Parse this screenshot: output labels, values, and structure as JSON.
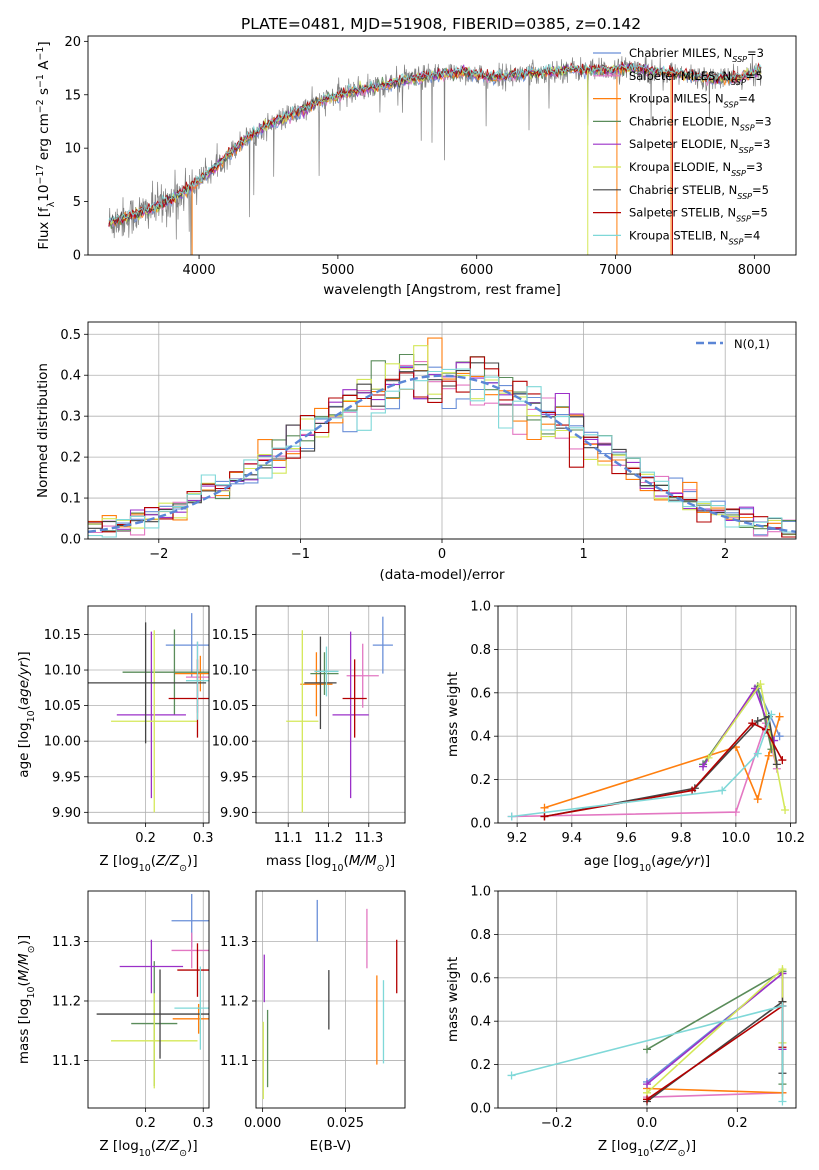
{
  "figure_title": "PLATE=0481, MJD=51908, FIBERID=0385, z=0.142",
  "models": [
    {
      "name": "Chabrier MILES, N_SSP=3",
      "color": "#6a8fd8"
    },
    {
      "name": "Salpeter MILES, N_SSP=5",
      "color": "#e377c2"
    },
    {
      "name": "Kroupa MILES, N_SSP=4",
      "color": "#ff7f0e"
    },
    {
      "name": "Chabrier ELODIE, N_SSP=3",
      "color": "#5a8c5a"
    },
    {
      "name": "Salpeter ELODIE, N_SSP=3",
      "color": "#9b30c8"
    },
    {
      "name": "Kroupa ELODIE, N_SSP=3",
      "color": "#d4e858"
    },
    {
      "name": "Chabrier STELIB, N_SSP=5",
      "color": "#444444"
    },
    {
      "name": "Salpeter STELIB, N_SSP=5",
      "color": "#b30000"
    },
    {
      "name": "Kroupa STELIB, N_SSP=4",
      "color": "#7fd8d8"
    }
  ],
  "chart_data": [
    {
      "id": "spectrum",
      "type": "line",
      "xlabel": "wavelength [Angstrom, rest frame]",
      "ylabel": "Flux [f_λ 10^-17 erg cm^-2 s^-1 A^-1]",
      "xlim": [
        3200,
        8300
      ],
      "ylim": [
        0,
        20.5
      ],
      "xticks": [
        4000,
        5000,
        6000,
        7000,
        8000
      ],
      "yticks": [
        0,
        5,
        10,
        15,
        20
      ],
      "legend_position": "right",
      "data_envelope": {
        "x": [
          3350,
          3500,
          3700,
          3900,
          4100,
          4300,
          4500,
          4700,
          4900,
          5100,
          5300,
          5500,
          5700,
          5900,
          6100,
          6300,
          6500,
          6700,
          6900,
          7100,
          7300,
          7500,
          7700,
          7900,
          8050
        ],
        "y": [
          3.0,
          3.6,
          4.5,
          6.0,
          8.0,
          10.5,
          12.2,
          13.3,
          14.5,
          15.3,
          15.8,
          16.4,
          16.8,
          17.1,
          16.6,
          16.9,
          17.1,
          17.4,
          17.2,
          17.5,
          17.2,
          16.8,
          16.5,
          16.6,
          17.3
        ]
      },
      "grid": false
    },
    {
      "id": "residuals",
      "type": "step",
      "xlabel": "(data-model)/error",
      "ylabel": "Normed distribution",
      "xlim": [
        -2.5,
        2.5
      ],
      "ylim": [
        0,
        0.53
      ],
      "xticks": [
        -2,
        -1,
        0,
        1,
        2
      ],
      "yticks": [
        0,
        0.1,
        0.2,
        0.3,
        0.4,
        0.5
      ],
      "legend": "N(0,1)",
      "legend_position": "top-right",
      "grid": true,
      "bin_width": 0.1,
      "gaussian": {
        "mu": 0,
        "sigma": 1
      }
    },
    {
      "id": "age_vs_Z",
      "type": "errorbar",
      "xlabel": "Z [log10(Z/Z_sun)]",
      "ylabel": "age [log10(age/yr)]",
      "xlim": [
        0.1,
        0.31
      ],
      "ylim": [
        9.885,
        10.19
      ],
      "xticks": [
        0.2,
        0.3
      ],
      "yticks": [
        9.9,
        9.95,
        10.0,
        10.05,
        10.1,
        10.15
      ],
      "grid": true,
      "points": [
        {
          "x": 0.28,
          "y": 10.135,
          "xe": 0.045,
          "ye": 0.045
        },
        {
          "x": 0.29,
          "y": 10.09,
          "xe": 0.02,
          "ye": 0.05
        },
        {
          "x": 0.295,
          "y": 10.095,
          "xe": 0.045,
          "ye": 0.025
        },
        {
          "x": 0.25,
          "y": 10.097,
          "xe": 0.09,
          "ye": 0.06
        },
        {
          "x": 0.21,
          "y": 10.037,
          "xe": 0.06,
          "ye": 0.117
        },
        {
          "x": 0.215,
          "y": 10.028,
          "xe": 0.075,
          "ye": 0.128
        },
        {
          "x": 0.2,
          "y": 10.082,
          "xe": 0.105,
          "ye": 0.085
        },
        {
          "x": 0.29,
          "y": 10.06,
          "xe": 0.05,
          "ye": 0.055
        },
        {
          "x": 0.29,
          "y": 10.085,
          "xe": 0.02,
          "ye": 0.055
        }
      ]
    },
    {
      "id": "age_vs_mass",
      "type": "errorbar",
      "xlabel": "mass [log10(M/M_sun)]",
      "ylabel": "",
      "xlim": [
        11.02,
        11.39
      ],
      "ylim": [
        9.885,
        10.19
      ],
      "xticks": [
        11.1,
        11.2,
        11.3
      ],
      "yticks": [
        9.9,
        9.95,
        10.0,
        10.05,
        10.1,
        10.15
      ],
      "grid": true,
      "points": [
        {
          "x": 11.335,
          "y": 10.135,
          "xe": 0.025,
          "ye": 0.04
        },
        {
          "x": 11.285,
          "y": 10.092,
          "xe": 0.04,
          "ye": 0.045
        },
        {
          "x": 11.17,
          "y": 10.08,
          "xe": 0.04,
          "ye": 0.045
        },
        {
          "x": 11.19,
          "y": 10.095,
          "xe": 0.035,
          "ye": 0.03
        },
        {
          "x": 11.255,
          "y": 10.037,
          "xe": 0.045,
          "ye": 0.117
        },
        {
          "x": 11.135,
          "y": 10.028,
          "xe": 0.04,
          "ye": 0.128
        },
        {
          "x": 11.18,
          "y": 10.082,
          "xe": 0.04,
          "ye": 0.065
        },
        {
          "x": 11.265,
          "y": 10.06,
          "xe": 0.03,
          "ye": 0.055
        },
        {
          "x": 11.195,
          "y": 10.098,
          "xe": 0.03,
          "ye": 0.035
        }
      ]
    },
    {
      "id": "weight_vs_age",
      "type": "line",
      "xlabel": "age [log10(age/yr)]",
      "ylabel": "mass weight",
      "xlim": [
        9.13,
        10.22
      ],
      "ylim": [
        0,
        1
      ],
      "xticks": [
        9.2,
        9.4,
        9.6,
        9.8,
        10.0,
        10.2
      ],
      "yticks": [
        0,
        0.2,
        0.4,
        0.6,
        0.8,
        1.0
      ],
      "grid": true,
      "series": [
        {
          "x": [
            9.88,
            10.08,
            10.16
          ],
          "y": [
            0.27,
            0.62,
            0.4
          ]
        },
        {
          "x": [
            9.18,
            10.0,
            10.11,
            10.15
          ],
          "y": [
            0.03,
            0.05,
            0.46,
            0.25
          ]
        },
        {
          "x": [
            9.3,
            10.0,
            10.08,
            10.12,
            10.16
          ],
          "y": [
            0.07,
            0.35,
            0.11,
            0.31,
            0.49
          ]
        },
        {
          "x": [
            9.88,
            10.08,
            10.13
          ],
          "y": [
            0.27,
            0.63,
            0.34
          ]
        },
        {
          "x": [
            9.88,
            10.07,
            10.14
          ],
          "y": [
            0.26,
            0.62,
            0.38
          ]
        },
        {
          "x": [
            9.9,
            10.09,
            10.18
          ],
          "y": [
            0.3,
            0.64,
            0.06
          ]
        },
        {
          "x": [
            9.3,
            9.85,
            10.08,
            10.12,
            10.15
          ],
          "y": [
            0.03,
            0.16,
            0.47,
            0.49,
            0.27
          ]
        },
        {
          "x": [
            9.3,
            9.84,
            10.06,
            10.11,
            10.17
          ],
          "y": [
            0.03,
            0.15,
            0.46,
            0.43,
            0.29
          ]
        },
        {
          "x": [
            9.18,
            9.95,
            10.08,
            10.13
          ],
          "y": [
            0.03,
            0.15,
            0.32,
            0.5
          ]
        }
      ]
    },
    {
      "id": "mass_vs_Z",
      "type": "errorbar",
      "xlabel": "Z [log10(Z/Z_sun)]",
      "ylabel": "mass [log10(M/M_sun)]",
      "xlim": [
        0.1,
        0.31
      ],
      "ylim": [
        11.02,
        11.385
      ],
      "xticks": [
        0.2,
        0.3
      ],
      "yticks": [
        11.1,
        11.2,
        11.3
      ],
      "grid": true,
      "points": [
        {
          "x": 0.28,
          "y": 11.335,
          "xe": 0.035,
          "ye": 0.045
        },
        {
          "x": 0.28,
          "y": 11.285,
          "xe": 0.035,
          "ye": 0.03
        },
        {
          "x": 0.292,
          "y": 11.17,
          "xe": 0.045,
          "ye": 0.025
        },
        {
          "x": 0.215,
          "y": 11.162,
          "xe": 0.04,
          "ye": 0.105
        },
        {
          "x": 0.21,
          "y": 11.258,
          "xe": 0.055,
          "ye": 0.045
        },
        {
          "x": 0.215,
          "y": 11.133,
          "xe": 0.075,
          "ye": 0.08
        },
        {
          "x": 0.225,
          "y": 11.178,
          "xe": 0.11,
          "ye": 0.075
        },
        {
          "x": 0.29,
          "y": 11.252,
          "xe": 0.035,
          "ye": 0.045
        },
        {
          "x": 0.295,
          "y": 11.188,
          "xe": 0.045,
          "ye": 0.07
        }
      ]
    },
    {
      "id": "mass_vs_EBV",
      "type": "errorbar",
      "xlabel": "E(B-V)",
      "ylabel": "",
      "xlim": [
        -0.002,
        0.043
      ],
      "ylim": [
        11.02,
        11.385
      ],
      "xticks": [
        0.0,
        0.025
      ],
      "yticks": [
        11.1,
        11.2,
        11.3
      ],
      "grid": true,
      "points": [
        {
          "x": 0.0165,
          "y": 11.335,
          "xe": 0,
          "ye": 0.035
        },
        {
          "x": 0.0315,
          "y": 11.305,
          "xe": 0,
          "ye": 0.05
        },
        {
          "x": 0.0345,
          "y": 11.168,
          "xe": 0,
          "ye": 0.075
        },
        {
          "x": 0.0015,
          "y": 11.12,
          "xe": 0,
          "ye": 0.065
        },
        {
          "x": 0.0005,
          "y": 11.238,
          "xe": 0,
          "ye": 0.04
        },
        {
          "x": 0.0002,
          "y": 11.1,
          "xe": 0,
          "ye": 0.065
        },
        {
          "x": 0.02,
          "y": 11.202,
          "xe": 0,
          "ye": 0.05
        },
        {
          "x": 0.0405,
          "y": 11.258,
          "xe": 0,
          "ye": 0.045
        },
        {
          "x": 0.0365,
          "y": 11.165,
          "xe": 0,
          "ye": 0.07
        }
      ]
    },
    {
      "id": "weight_vs_Z",
      "type": "line",
      "xlabel": "Z [log10(Z/Z_sun)]",
      "ylabel": "mass weight",
      "xlim": [
        -0.33,
        0.33
      ],
      "ylim": [
        0,
        1
      ],
      "xticks": [
        -0.2,
        0.0,
        0.2
      ],
      "yticks": [
        0,
        0.2,
        0.4,
        0.6,
        0.8,
        1.0
      ],
      "grid": true,
      "series": [
        {
          "x": [
            0.0,
            0.3,
            0.3
          ],
          "y": [
            0.12,
            0.62,
            0.27
          ]
        },
        {
          "x": [
            0.0,
            0.3,
            0.3
          ],
          "y": [
            0.05,
            0.07,
            0.47
          ]
        },
        {
          "x": [
            0.0,
            0.3,
            0.3
          ],
          "y": [
            0.09,
            0.07,
            0.49
          ]
        },
        {
          "x": [
            0.0,
            0.3,
            0.3
          ],
          "y": [
            0.27,
            0.63,
            0.11
          ]
        },
        {
          "x": [
            0.0,
            0.3,
            0.3
          ],
          "y": [
            0.11,
            0.62,
            0.27
          ]
        },
        {
          "x": [
            0.0,
            0.3,
            0.3
          ],
          "y": [
            0.07,
            0.64,
            0.3
          ]
        },
        {
          "x": [
            0.0,
            0.3,
            0.3
          ],
          "y": [
            0.03,
            0.49,
            0.16
          ]
        },
        {
          "x": [
            0.0,
            0.3,
            0.3
          ],
          "y": [
            0.04,
            0.47,
            0.28
          ]
        },
        {
          "x": [
            -0.3,
            0.3,
            0.3
          ],
          "y": [
            0.15,
            0.47,
            0.03
          ]
        }
      ]
    }
  ]
}
